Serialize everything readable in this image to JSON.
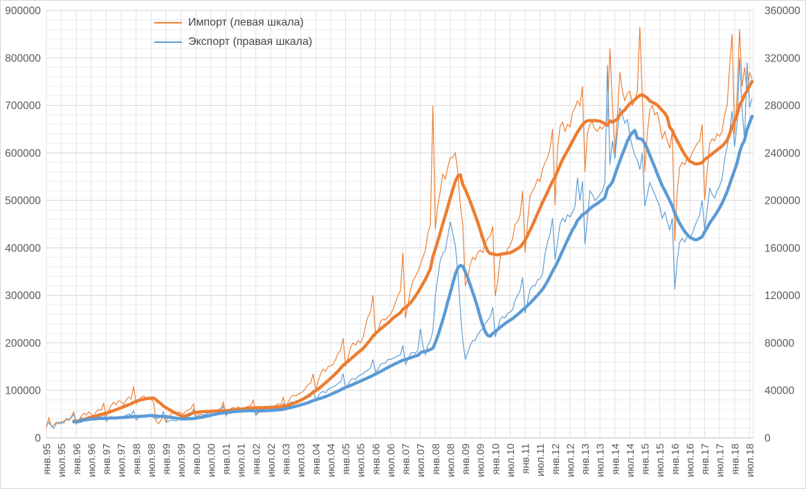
{
  "legend": {
    "items": [
      {
        "label": "Импорт (левая шкала)",
        "color": "#ED7D31"
      },
      {
        "label": "Экспорт (правая шкала)",
        "color": "#5B9BD5"
      }
    ]
  },
  "colors": {
    "grid_major": "#D4D4D4",
    "grid_minor": "#ECECEC",
    "grid_vertical": "#E2E2E2",
    "axis_line": "#BFBFBF",
    "tick_text": "#595959",
    "import": "#ED7D31",
    "export": "#5B9BD5"
  },
  "chart_data": {
    "type": "line",
    "title": "",
    "frequency": "monthly",
    "x_range": {
      "start": "янв.95",
      "end": "авг.18"
    },
    "legend_position": "top-left-inside",
    "grid": "on",
    "trend_note": "толстые линии — 12-месячное скользящее среднее тонких месячных линий",
    "left_axis": {
      "min": 0,
      "max": 900000,
      "major_step": 100000,
      "minor_step": 20000,
      "tick_labels": [
        "0",
        "100000",
        "200000",
        "300000",
        "400000",
        "500000",
        "600000",
        "700000",
        "800000",
        "900000"
      ]
    },
    "right_axis": {
      "min": 0,
      "max": 360000,
      "major_step": 40000,
      "tick_labels": [
        "0",
        "40000",
        "80000",
        "120000",
        "160000",
        "200000",
        "240000",
        "280000",
        "320000",
        "360000"
      ]
    },
    "x_tick_labels": [
      "янв.95",
      "июл.95",
      "янв.96",
      "июл.96",
      "янв.97",
      "июл.97",
      "янв.98",
      "июл.98",
      "янв.99",
      "июл.99",
      "янв.00",
      "июл.00",
      "янв.01",
      "июл.01",
      "янв.02",
      "июл.02",
      "янв.03",
      "июл.03",
      "янв.04",
      "июл.04",
      "янв.05",
      "июл.05",
      "янв.06",
      "июл.06",
      "янв.07",
      "июл.07",
      "янв.08",
      "июл.08",
      "янв.09",
      "июл.09",
      "янв.10",
      "июл.10",
      "янв.11",
      "июл.11",
      "янв.12",
      "июл.12",
      "янв.13",
      "июл.13",
      "янв.14",
      "июл.14",
      "янв.15",
      "июл.15",
      "янв.16",
      "июл.16",
      "янв.17",
      "июл.17",
      "янв.18",
      "июл.18"
    ],
    "series": [
      {
        "name": "Импорт (левая шкала)",
        "axis": "left",
        "color": "#ED7D31",
        "monthly": [
          21000,
          42000,
          24000,
          27000,
          33000,
          30000,
          35000,
          31000,
          41000,
          36000,
          44000,
          55000,
          29000,
          38000,
          45000,
          52000,
          48000,
          55000,
          50000,
          46000,
          55000,
          60000,
          58000,
          73000,
          45000,
          58000,
          68000,
          75000,
          70000,
          78000,
          76000,
          70000,
          80000,
          86000,
          82000,
          108000,
          72000,
          80000,
          85000,
          88000,
          84000,
          86000,
          82000,
          75000,
          35000,
          30000,
          38000,
          45000,
          35000,
          42000,
          50000,
          53000,
          50000,
          55000,
          53000,
          50000,
          57000,
          58000,
          62000,
          72000,
          42000,
          50000,
          55000,
          57000,
          55000,
          58000,
          56000,
          55000,
          58000,
          60000,
          62000,
          75000,
          46000,
          55000,
          62000,
          64000,
          62000,
          65000,
          62000,
          63000,
          64000,
          67000,
          68000,
          80000,
          48000,
          57000,
          63000,
          66000,
          64000,
          67000,
          66000,
          66000,
          68000,
          72000,
          70000,
          85000,
          65000,
          75000,
          85000,
          90000,
          88000,
          92000,
          95000,
          98000,
          105000,
          112000,
          115000,
          135000,
          100000,
          120000,
          135000,
          145000,
          140000,
          150000,
          152000,
          155000,
          165000,
          178000,
          185000,
          210000,
          150000,
          170000,
          190000,
          200000,
          195000,
          205000,
          200000,
          210000,
          235000,
          255000,
          265000,
          300000,
          215000,
          225000,
          245000,
          250000,
          248000,
          255000,
          260000,
          270000,
          285000,
          300000,
          310000,
          390000,
          252000,
          280000,
          310000,
          330000,
          340000,
          350000,
          365000,
          380000,
          395000,
          430000,
          450000,
          700000,
          440000,
          490000,
          520000,
          555000,
          545000,
          570000,
          590000,
          590000,
          600000,
          560000,
          490000,
          450000,
          320000,
          335000,
          365000,
          380000,
          375000,
          390000,
          395000,
          390000,
          410000,
          420000,
          425000,
          445000,
          298000,
          330000,
          380000,
          390000,
          385000,
          398000,
          405000,
          420000,
          450000,
          455000,
          470000,
          520000,
          390000,
          455000,
          510000,
          520000,
          530000,
          545000,
          540000,
          565000,
          580000,
          590000,
          610000,
          650000,
          490000,
          610000,
          655000,
          665000,
          645000,
          660000,
          655000,
          685000,
          695000,
          710000,
          700000,
          740000,
          560000,
          640000,
          660000,
          665000,
          650000,
          645000,
          655000,
          650000,
          660000,
          670000,
          820000,
          700000,
          600000,
          680000,
          770000,
          730000,
          710000,
          725000,
          730000,
          700000,
          710000,
          730000,
          865000,
          720000,
          560000,
          640000,
          690000,
          700000,
          680000,
          685000,
          660000,
          630000,
          645000,
          625000,
          610000,
          645000,
          415000,
          520000,
          570000,
          580000,
          575000,
          590000,
          585000,
          600000,
          610000,
          620000,
          625000,
          660000,
          500000,
          560000,
          620000,
          630000,
          625000,
          640000,
          635000,
          645000,
          680000,
          700000,
          780000,
          850000,
          640000,
          720000,
          860000,
          740000,
          780000,
          730000,
          770000,
          755000
        ]
      },
      {
        "name": "Экспорт (правая шкала)",
        "axis": "right",
        "color": "#5B9BD5",
        "monthly": [
          11000,
          13000,
          10000,
          8000,
          12000,
          13000,
          12000,
          14000,
          15000,
          16000,
          17000,
          20000,
          13000,
          15000,
          17000,
          16000,
          15000,
          17000,
          15000,
          16000,
          17000,
          18000,
          17000,
          21000,
          14000,
          16000,
          18000,
          17000,
          16000,
          18000,
          17000,
          18000,
          19000,
          20000,
          19000,
          23000,
          15000,
          17000,
          19000,
          19000,
          18000,
          20000,
          19000,
          17000,
          16000,
          17000,
          18000,
          22000,
          13000,
          14000,
          15000,
          15000,
          14000,
          16000,
          15000,
          16000,
          17000,
          18000,
          19000,
          24000,
          16000,
          18000,
          20000,
          19000,
          20000,
          21000,
          21000,
          22000,
          22000,
          23000,
          23000,
          27000,
          19000,
          21000,
          23000,
          23000,
          22000,
          23000,
          23000,
          23000,
          23000,
          24000,
          23000,
          26000,
          19000,
          21000,
          23000,
          24000,
          23000,
          24000,
          24000,
          25000,
          25000,
          26000,
          25000,
          29000,
          25000,
          27000,
          30000,
          30000,
          29000,
          31000,
          31000,
          32000,
          33000,
          34000,
          35000,
          40000,
          32000,
          35000,
          38000,
          39000,
          38000,
          41000,
          42000,
          43000,
          44000,
          46000,
          47000,
          54000,
          42000,
          45000,
          49000,
          50000,
          49000,
          52000,
          53000,
          54000,
          56000,
          57000,
          59000,
          66000,
          55000,
          58000,
          62000,
          63000,
          63000,
          66000,
          66000,
          67000,
          68000,
          69000,
          70000,
          78000,
          62000,
          66000,
          71000,
          72000,
          71000,
          74000,
          92000,
          78000,
          70000,
          78000,
          82000,
          90000,
          120000,
          135000,
          150000,
          155000,
          158000,
          170000,
          182000,
          172000,
          162000,
          140000,
          108000,
          82000,
          66000,
          72000,
          78000,
          82000,
          82000,
          87000,
          90000,
          92000,
          96000,
          99000,
          102000,
          110000,
          85000,
          92000,
          100000,
          102000,
          101000,
          105000,
          106000,
          108000,
          116000,
          120000,
          124000,
          135000,
          105000,
          115000,
          125000,
          128000,
          128000,
          133000,
          134000,
          138000,
          155000,
          165000,
          172000,
          185000,
          150000,
          165000,
          180000,
          185000,
          182000,
          188000,
          186000,
          190000,
          195000,
          219000,
          200000,
          216000,
          163000,
          185000,
          208000,
          205000,
          200000,
          202000,
          205000,
          208000,
          215000,
          314000,
          230000,
          250000,
          235000,
          258000,
          278000,
          272000,
          265000,
          268000,
          255000,
          245000,
          238000,
          234000,
          226000,
          240000,
          195000,
          205000,
          215000,
          210000,
          205000,
          200000,
          195000,
          185000,
          190000,
          182000,
          175000,
          185000,
          125000,
          150000,
          165000,
          168000,
          165000,
          170000,
          168000,
          172000,
          178000,
          183000,
          188000,
          200000,
          175000,
          192000,
          210000,
          205000,
          202000,
          208000,
          212000,
          218000,
          235000,
          245000,
          258000,
          275000,
          245000,
          265000,
          320000,
          277000,
          250000,
          316000,
          278000,
          286000
        ]
      }
    ]
  }
}
